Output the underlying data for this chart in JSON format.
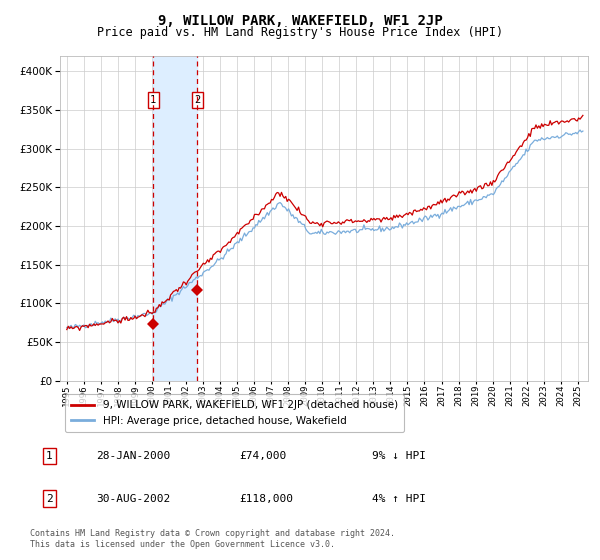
{
  "title": "9, WILLOW PARK, WAKEFIELD, WF1 2JP",
  "subtitle": "Price paid vs. HM Land Registry's House Price Index (HPI)",
  "legend_line1": "9, WILLOW PARK, WAKEFIELD, WF1 2JP (detached house)",
  "legend_line2": "HPI: Average price, detached house, Wakefield",
  "sale1_label": "1",
  "sale1_date": "28-JAN-2000",
  "sale1_price": "£74,000",
  "sale1_hpi": "9% ↓ HPI",
  "sale2_label": "2",
  "sale2_date": "30-AUG-2002",
  "sale2_price": "£118,000",
  "sale2_hpi": "4% ↑ HPI",
  "footer": "Contains HM Land Registry data © Crown copyright and database right 2024.\nThis data is licensed under the Open Government Licence v3.0.",
  "hpi_color": "#7aaddc",
  "price_color": "#cc0000",
  "marker_color": "#cc0000",
  "vline_color": "#cc0000",
  "shade_color": "#ddeeff",
  "grid_color": "#cccccc",
  "ylim": [
    0,
    420000
  ],
  "yticks": [
    0,
    50000,
    100000,
    150000,
    200000,
    250000,
    300000,
    350000,
    400000
  ],
  "sale1_x": 2000.08,
  "sale1_y": 74000,
  "sale2_x": 2002.67,
  "sale2_y": 118000,
  "xmin": 1994.6,
  "xmax": 2025.6
}
